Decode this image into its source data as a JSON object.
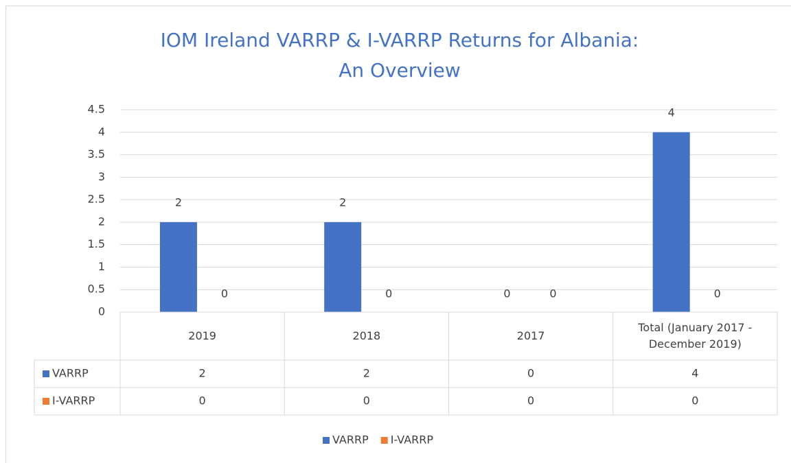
{
  "chart_data": {
    "type": "bar",
    "title": [
      "IOM Ireland VARRP & I-VARRP Returns for Albania:",
      "An Overview"
    ],
    "categories": [
      "2019",
      "2018",
      "2017",
      "Total (January 2017 - December 2019)"
    ],
    "series": [
      {
        "name": "VARRP",
        "color": "#4472c4",
        "values": [
          2,
          2,
          0,
          4
        ]
      },
      {
        "name": "I-VARRP",
        "color": "#ed7d31",
        "values": [
          0,
          0,
          0,
          0
        ]
      }
    ],
    "ylim": [
      0,
      4.5
    ],
    "yticks": [
      0,
      0.5,
      1,
      1.5,
      2,
      2.5,
      3,
      3.5,
      4,
      4.5
    ],
    "grid": true,
    "data_labels": true,
    "data_table": true,
    "legend": "bottom"
  }
}
